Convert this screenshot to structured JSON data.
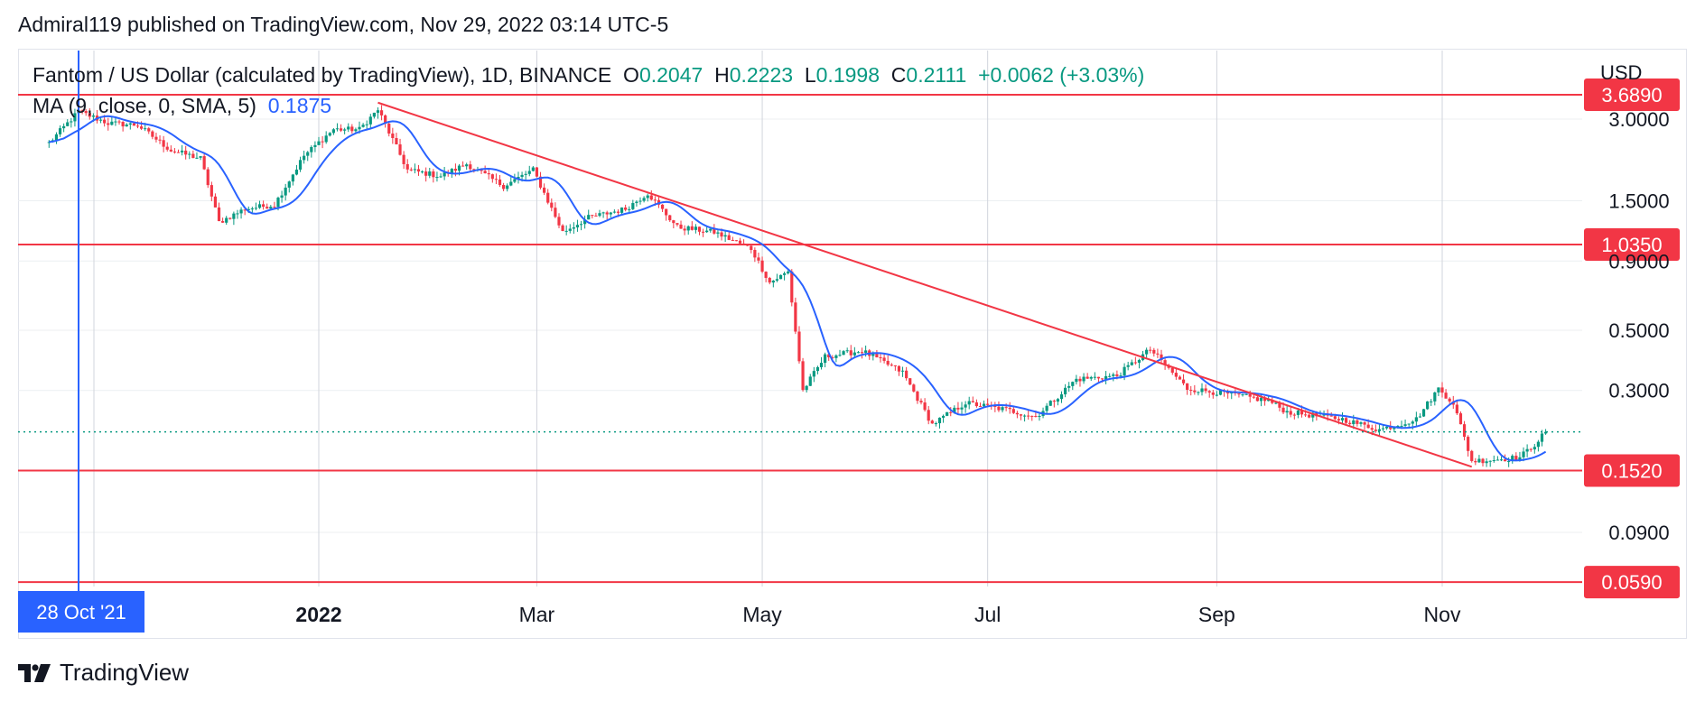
{
  "header": {
    "published": "Admiral119 published on TradingView.com, Nov 29, 2022 03:14 UTC-5"
  },
  "legend": {
    "symbol": "Fantom / US Dollar (calculated by TradingView), 1D, BINANCE",
    "o_label": "O",
    "o_value": "0.2047",
    "h_label": "H",
    "h_value": "0.2223",
    "l_label": "L",
    "l_value": "0.1998",
    "c_label": "C",
    "c_value": "0.2111",
    "change": "+0.0062 (+3.03%)",
    "ma_label": "MA (9, close, 0, SMA, 5)",
    "ma_value": "0.1875"
  },
  "currency": "USD",
  "footer": {
    "brand": "TradingView"
  },
  "colors": {
    "up": "#089981",
    "down": "#f23645",
    "ma": "#2962ff",
    "level": "#f23645",
    "grid": "#eceff2",
    "crosshair": "#2962ff"
  },
  "chart_data": {
    "type": "candlestick",
    "symbol": "FTMUSD",
    "timeframe": "1D",
    "y_scale": "log",
    "y_ticks": [
      "3.0000",
      "1.5000",
      "0.9000",
      "0.5000",
      "0.3000",
      "0.0900"
    ],
    "x_ticks": [
      "2022",
      "Mar",
      "May",
      "Jul",
      "Sep",
      "Nov"
    ],
    "crosshair_date_label": "28 Oct '21",
    "horizontal_levels": [
      "3.6890",
      "1.0350",
      "0.1520",
      "0.0590"
    ],
    "last_price": 0.2111,
    "trendline": {
      "from": [
        "2022-01-17",
        3.45
      ],
      "to": [
        "2022-11-09",
        0.157
      ]
    },
    "price_path": [
      [
        "2021-10-20",
        2.45
      ],
      [
        "2021-10-28",
        3.2
      ],
      [
        "2021-11-05",
        2.9
      ],
      [
        "2021-11-13",
        2.85
      ],
      [
        "2021-11-22",
        2.3
      ],
      [
        "2021-11-30",
        2.15
      ],
      [
        "2021-12-05",
        1.25
      ],
      [
        "2021-12-12",
        1.4
      ],
      [
        "2021-12-20",
        1.45
      ],
      [
        "2021-12-28",
        2.2
      ],
      [
        "2022-01-05",
        2.75
      ],
      [
        "2022-01-12",
        2.75
      ],
      [
        "2022-01-17",
        3.25
      ],
      [
        "2022-01-25",
        1.95
      ],
      [
        "2022-02-03",
        1.85
      ],
      [
        "2022-02-10",
        2.05
      ],
      [
        "2022-02-20",
        1.7
      ],
      [
        "2022-02-28",
        1.95
      ],
      [
        "2022-03-08",
        1.15
      ],
      [
        "2022-03-15",
        1.3
      ],
      [
        "2022-03-25",
        1.4
      ],
      [
        "2022-03-31",
        1.6
      ],
      [
        "2022-04-08",
        1.2
      ],
      [
        "2022-04-18",
        1.15
      ],
      [
        "2022-04-28",
        1.0
      ],
      [
        "2022-05-03",
        0.75
      ],
      [
        "2022-05-08",
        0.82
      ],
      [
        "2022-05-12",
        0.3
      ],
      [
        "2022-05-18",
        0.4
      ],
      [
        "2022-05-28",
        0.42
      ],
      [
        "2022-06-08",
        0.35
      ],
      [
        "2022-06-16",
        0.225
      ],
      [
        "2022-06-25",
        0.27
      ],
      [
        "2022-07-06",
        0.255
      ],
      [
        "2022-07-14",
        0.24
      ],
      [
        "2022-07-25",
        0.33
      ],
      [
        "2022-08-05",
        0.34
      ],
      [
        "2022-08-14",
        0.425
      ],
      [
        "2022-08-24",
        0.305
      ],
      [
        "2022-09-05",
        0.29
      ],
      [
        "2022-09-15",
        0.275
      ],
      [
        "2022-09-20",
        0.25
      ],
      [
        "2022-10-05",
        0.235
      ],
      [
        "2022-10-15",
        0.215
      ],
      [
        "2022-10-25",
        0.235
      ],
      [
        "2022-10-31",
        0.305
      ],
      [
        "2022-11-04",
        0.27
      ],
      [
        "2022-11-09",
        0.165
      ],
      [
        "2022-11-18",
        0.168
      ],
      [
        "2022-11-22",
        0.17
      ],
      [
        "2022-11-26",
        0.19
      ],
      [
        "2022-11-29",
        0.2111
      ]
    ]
  }
}
